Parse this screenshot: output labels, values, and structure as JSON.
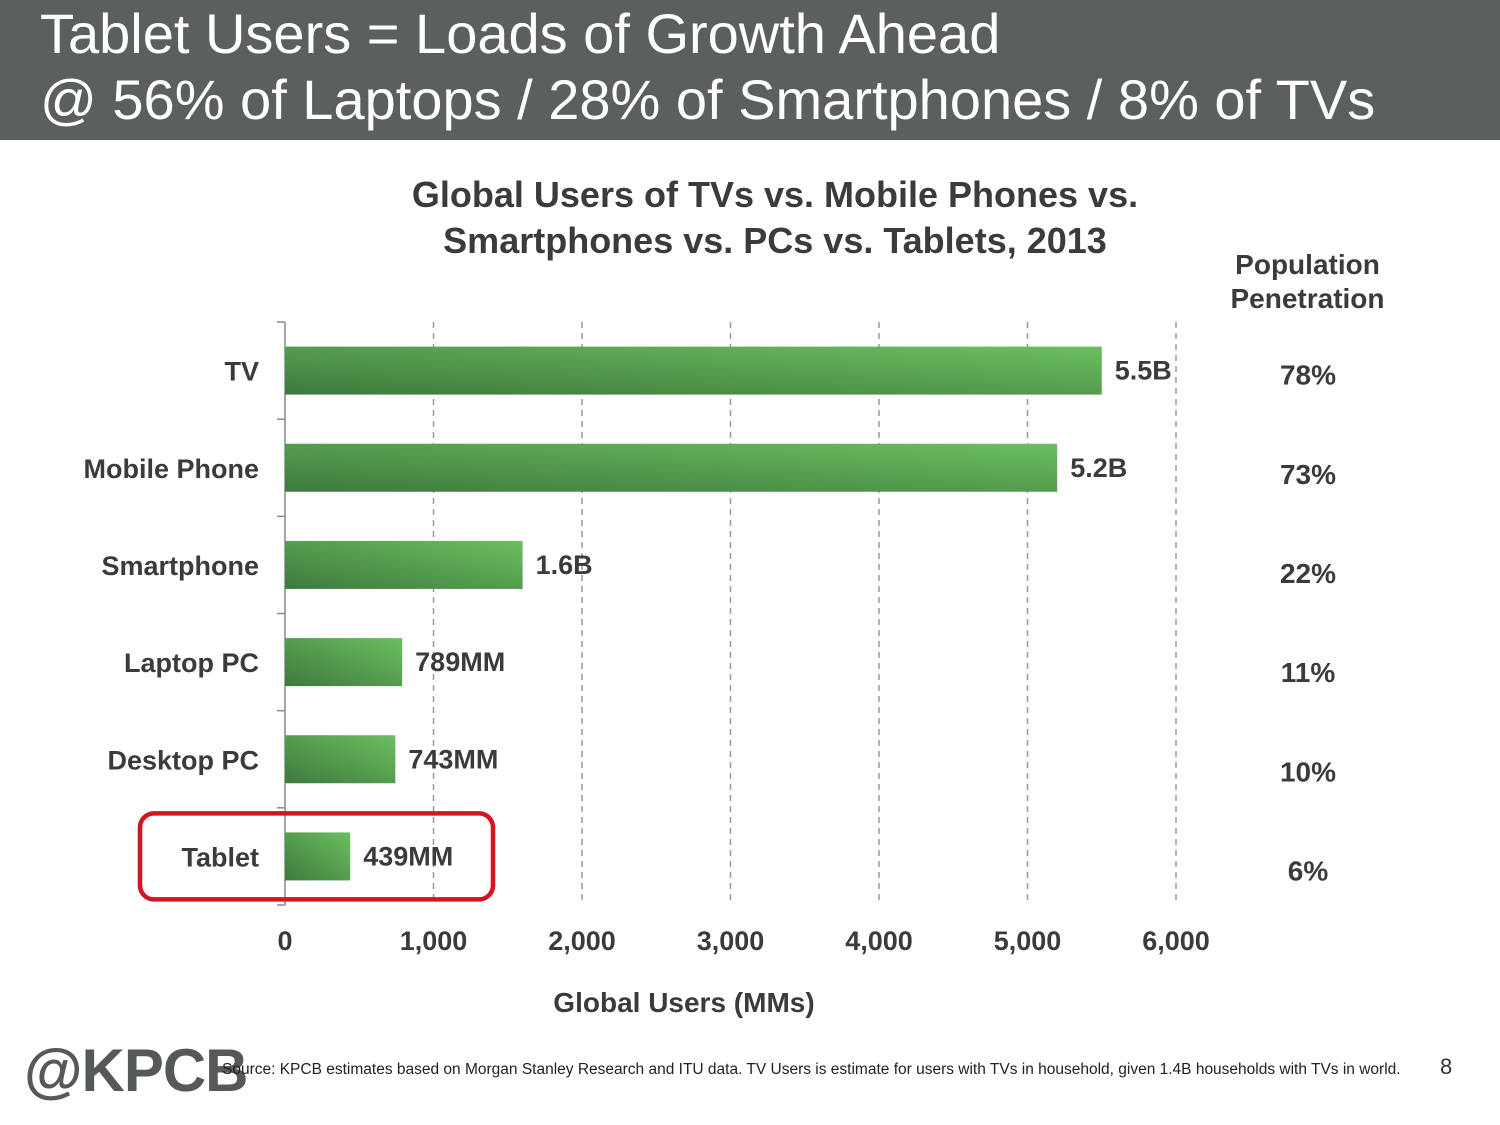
{
  "slide": {
    "title_line1": "Tablet Users = Loads of Growth Ahead",
    "title_line2": "@ 56% of Laptops / 28% of Smartphones / 8% of TVs",
    "source": "Source: KPCB estimates based on Morgan Stanley Research and ITU data. TV Users is estimate for users with TVs in household, given 1.4B households with TVs in world.",
    "logo": "@KPCB",
    "page_number": "8"
  },
  "chart_data": {
    "type": "bar",
    "orientation": "horizontal",
    "title": "Global Users of TVs vs. Mobile Phones vs. Smartphones vs. PCs vs. Tablets, 2013",
    "title_lines": [
      "Global Users of TVs vs. Mobile Phones vs.",
      "Smartphones vs. PCs vs. Tablets, 2013"
    ],
    "xlabel": "Global Users (MMs)",
    "ylabel": "",
    "xlim": [
      0,
      6000
    ],
    "xticks": [
      0,
      1000,
      2000,
      3000,
      4000,
      5000,
      6000
    ],
    "xtick_labels": [
      "0",
      "1,000",
      "2,000",
      "3,000",
      "4,000",
      "5,000",
      "6,000"
    ],
    "grid": "vertical dashed",
    "categories": [
      "TV",
      "Mobile Phone",
      "Smartphone",
      "Laptop PC",
      "Desktop PC",
      "Tablet"
    ],
    "values": [
      5500,
      5200,
      1600,
      789,
      743,
      439
    ],
    "data_labels": [
      "5.5B",
      "5.2B",
      "1.6B",
      "789MM",
      "743MM",
      "439MM"
    ],
    "penetration_header": "Population Penetration",
    "penetration_header_lines": [
      "Population",
      "Penetration"
    ],
    "penetration": [
      "78%",
      "73%",
      "22%",
      "11%",
      "10%",
      "6%"
    ],
    "highlight": "Tablet",
    "colors": {
      "bar_dark": "#3e7a3d",
      "bar_light": "#6bbf5f",
      "highlight": "#d0161f",
      "header_bg": "#5b605d"
    }
  }
}
